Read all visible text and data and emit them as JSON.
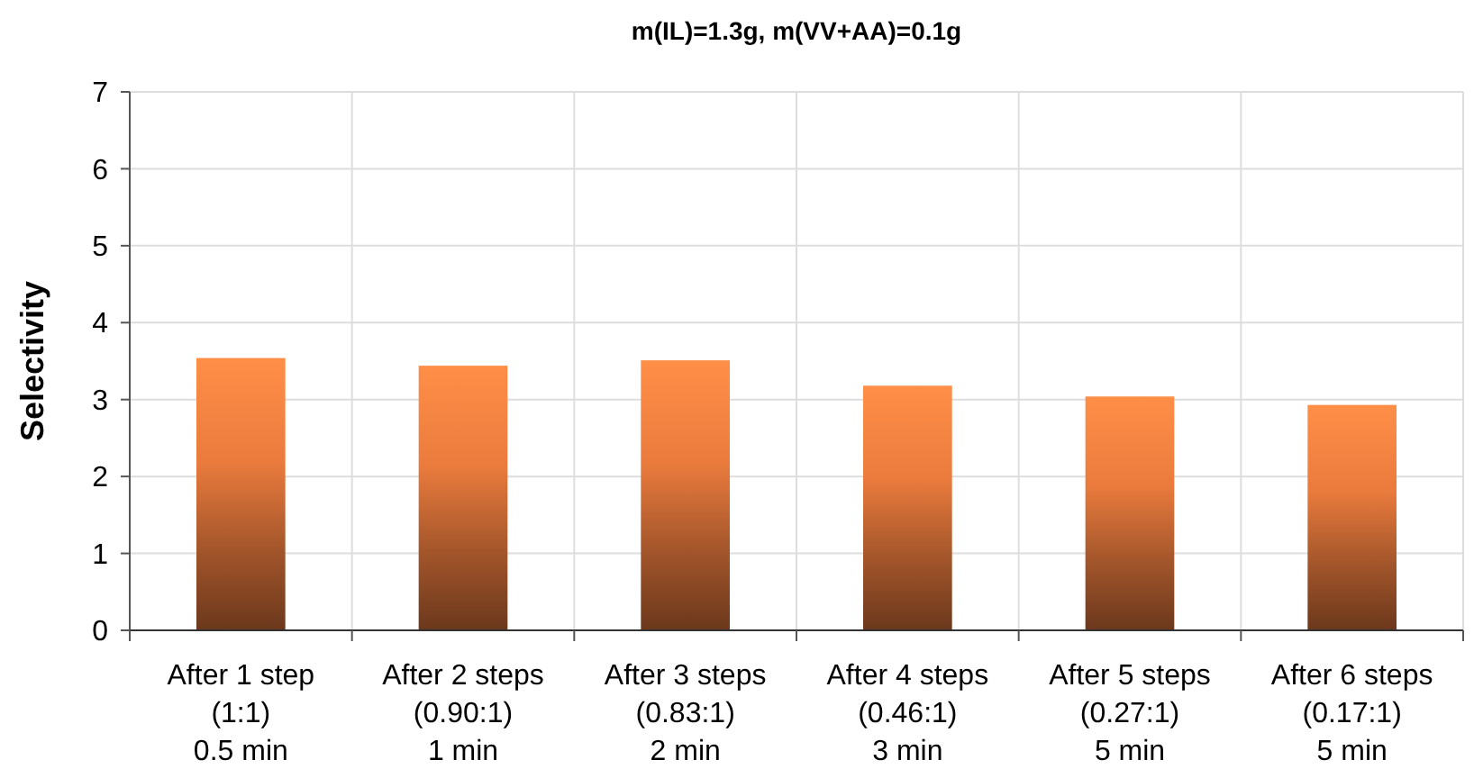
{
  "chart_data": {
    "type": "bar",
    "title": "m(IL)=1.3g,  m(VV+AA)=0.1g",
    "ylabel": "Selectivity",
    "categories": [
      "After 1 step\n(1:1)\n0.5 min",
      "After 2 steps\n(0.90:1)\n1 min",
      "After 3 steps\n(0.83:1)\n2 min",
      "After 4 steps\n(0.46:1)\n3 min",
      "After 5 steps\n(0.27:1)\n5 min",
      "After 6 steps\n(0.17:1)\n5 min"
    ],
    "values": [
      3.54,
      3.44,
      3.51,
      3.18,
      3.04,
      2.93
    ],
    "color": "#a4562b",
    "ylim": [
      0,
      7
    ],
    "yticks": [
      0,
      1,
      2,
      3,
      4,
      5,
      6,
      7
    ],
    "grid": true
  }
}
